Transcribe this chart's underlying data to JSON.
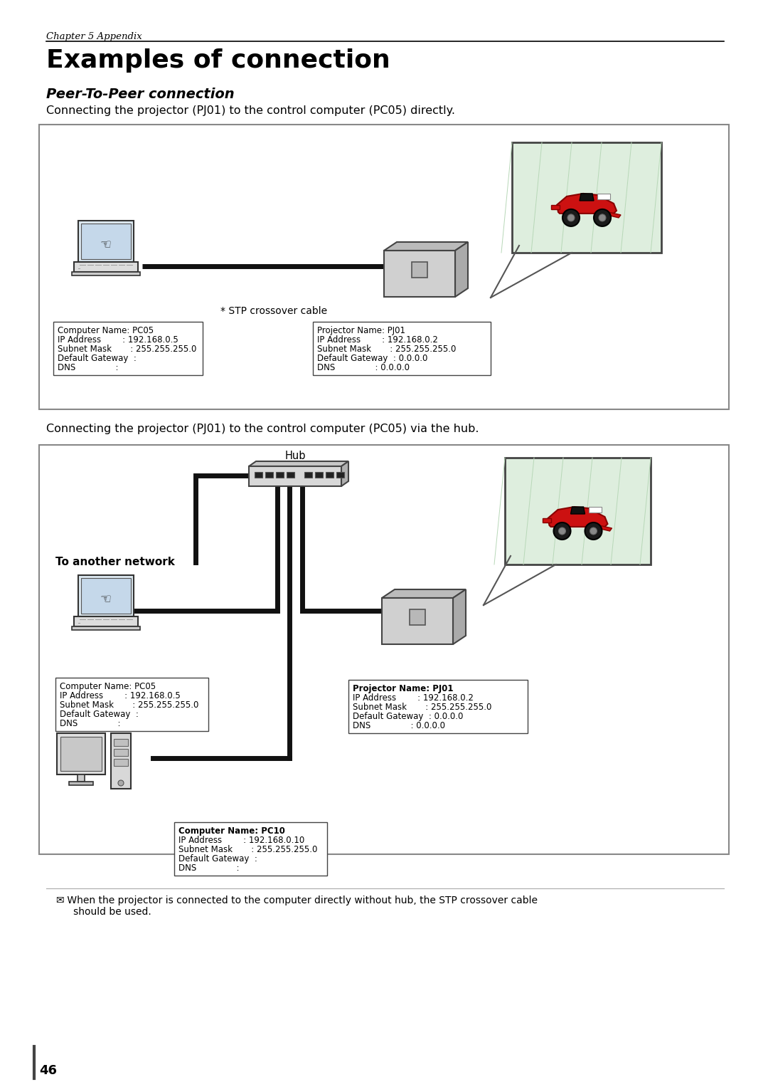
{
  "page_title": "Examples of connection",
  "chapter_label": "Chapter 5 Appendix",
  "section1_title": "Peer-To-Peer connection",
  "section1_desc": "Connecting the projector (PJ01) to the control computer (PC05) directly.",
  "section2_desc": "Connecting the projector (PJ01) to the control computer (PC05) via the hub.",
  "stp_label": "* STP crossover cable",
  "hub_label": "Hub",
  "network_label": "To another network",
  "pc05_lines1": [
    "Computer Name: PC05",
    "IP Address        : 192.168.0.5",
    "Subnet Mask       : 255.255.255.0",
    "Default Gateway  :",
    "DNS               :"
  ],
  "pj01_lines1": [
    "Projector Name: PJ01",
    "IP Address        : 192.168.0.2",
    "Subnet Mask       : 255.255.255.0",
    "Default Gateway  : 0.0.0.0",
    "DNS               : 0.0.0.0"
  ],
  "pc05_lines2": [
    "Computer Name: PC05",
    "IP Address        : 192.168.0.5",
    "Subnet Mask       : 255.255.255.0",
    "Default Gateway  :",
    "DNS               :"
  ],
  "pj01_lines2": [
    "Projector Name: PJ01",
    "IP Address        : 192.168.0.2",
    "Subnet Mask       : 255.255.255.0",
    "Default Gateway  : 0.0.0.0",
    "DNS               : 0.0.0.0"
  ],
  "pc10_lines": [
    "Computer Name: PC10",
    "IP Address        : 192.168.0.10",
    "Subnet Mask       : 255.255.255.0",
    "Default Gateway  :",
    "DNS               :"
  ],
  "footnote_icon": "✉",
  "footnote_text": " When the projector is connected to the computer directly without hub, the STP crossover cable\n   should be used.",
  "page_number": "46",
  "bg_color": "#ffffff",
  "screen_color": "#deeede",
  "diag_border": "#888888"
}
